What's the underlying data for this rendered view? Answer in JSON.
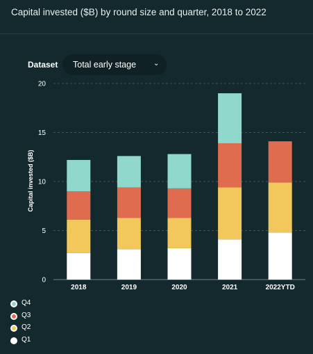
{
  "header": {
    "title": "Capital invested ($B) by round size and quarter, 2018 to 2022"
  },
  "controls": {
    "dataset_label": "Dataset",
    "dataset_value": "Total early stage"
  },
  "colors": {
    "background": "#14292d",
    "Q1": "#ffffff",
    "Q2": "#f2c75c",
    "Q3": "#e06c50",
    "Q4": "#8fd8cb"
  },
  "chart_data": {
    "type": "bar",
    "stacked": true,
    "categories": [
      "2018",
      "2019",
      "2020",
      "2021",
      "2022YTD"
    ],
    "series": [
      {
        "name": "Q1",
        "values": [
          2.7,
          3.1,
          3.2,
          4.1,
          4.8
        ]
      },
      {
        "name": "Q2",
        "values": [
          3.4,
          3.2,
          3.1,
          5.3,
          5.1
        ]
      },
      {
        "name": "Q3",
        "values": [
          2.9,
          3.1,
          3.0,
          4.5,
          4.2
        ]
      },
      {
        "name": "Q4",
        "values": [
          3.2,
          3.2,
          3.5,
          5.1,
          0
        ]
      }
    ],
    "xlabel": "",
    "ylabel": "Capital invested ($B)",
    "ylim": [
      0,
      20
    ],
    "yticks": [
      0,
      5,
      10,
      15,
      20
    ],
    "grid": true,
    "legend_position": "bottom-left",
    "legend_order": [
      "Q4",
      "Q3",
      "Q2",
      "Q1"
    ]
  }
}
